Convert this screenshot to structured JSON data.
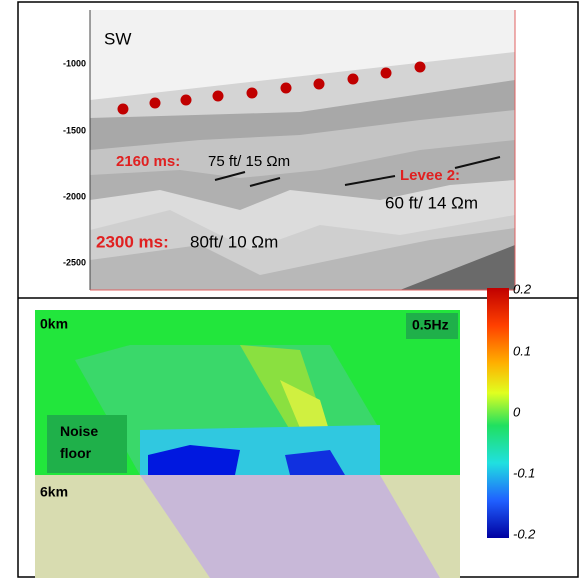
{
  "top_panel": {
    "label": "SW",
    "yticks": [
      "-1000",
      "-1500",
      "-2000",
      "-2500"
    ],
    "annotations": [
      {
        "time": "2160 ms:",
        "text": "75 ft/ 15 Ωm"
      },
      {
        "time": "Levee 2:",
        "text": "60 ft/ 14 Ωm"
      },
      {
        "time": "2300 ms:",
        "text": "80ft/ 10 Ωm"
      }
    ]
  },
  "bottom_panel": {
    "top_left": "0km",
    "top_right": "0.5Hz",
    "noise_label": "Noise floor",
    "bottom_left": "6km",
    "colorbar_ticks": [
      "0.2",
      "0.1",
      "0",
      "-0.1",
      "-0.2"
    ]
  }
}
